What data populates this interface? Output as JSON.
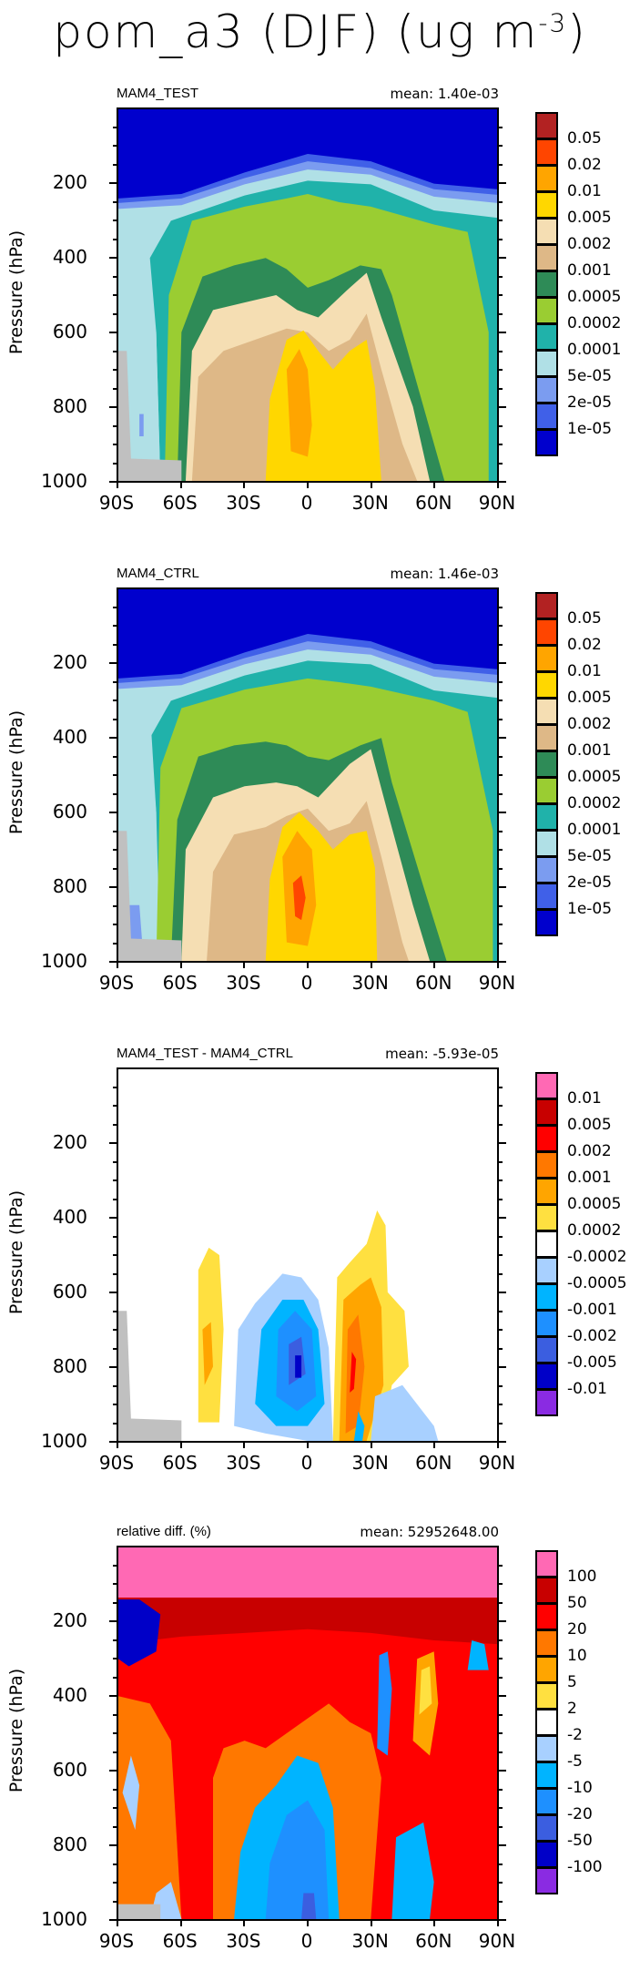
{
  "figure_title": {
    "main": "pom_a3 (DJF) (ug m",
    "sup": "-3",
    "close": ")"
  },
  "chart_data": [
    {
      "type": "heatmap",
      "title": "MAM4_TEST",
      "mean_label": "mean: 1.40e-03",
      "ylabel": "Pressure (hPa)",
      "yticks": [
        "200",
        "400",
        "600",
        "800",
        "1000"
      ],
      "xticks": [
        "90S",
        "60S",
        "30S",
        "0",
        "30N",
        "60N",
        "90N"
      ],
      "ylim": [
        0,
        1000
      ],
      "xlim": [
        -90,
        90
      ],
      "levels": [
        "0.05",
        "0.02",
        "0.01",
        "0.005",
        "0.002",
        "0.001",
        "0.0005",
        "0.0002",
        "0.0001",
        "5e-05",
        "2e-05",
        "1e-05"
      ],
      "colors": [
        "#b22222",
        "#ff4500",
        "#ffa500",
        "#ffd700",
        "#f5deb3",
        "#deb887",
        "#2e8b57",
        "#9acd32",
        "#20b2aa",
        "#b0e0e6",
        "#7b9cf0",
        "#4060e8",
        "#0000cd"
      ]
    },
    {
      "type": "heatmap",
      "title": "MAM4_CTRL",
      "mean_label": "mean: 1.46e-03",
      "ylabel": "Pressure (hPa)",
      "yticks": [
        "200",
        "400",
        "600",
        "800",
        "1000"
      ],
      "xticks": [
        "90S",
        "60S",
        "30S",
        "0",
        "30N",
        "60N",
        "90N"
      ],
      "ylim": [
        0,
        1000
      ],
      "xlim": [
        -90,
        90
      ],
      "levels": [
        "0.05",
        "0.02",
        "0.01",
        "0.005",
        "0.002",
        "0.001",
        "0.0005",
        "0.0002",
        "0.0001",
        "5e-05",
        "2e-05",
        "1e-05"
      ],
      "colors": [
        "#b22222",
        "#ff4500",
        "#ffa500",
        "#ffd700",
        "#f5deb3",
        "#deb887",
        "#2e8b57",
        "#9acd32",
        "#20b2aa",
        "#b0e0e6",
        "#7b9cf0",
        "#4060e8",
        "#0000cd"
      ]
    },
    {
      "type": "heatmap",
      "title": "MAM4_TEST - MAM4_CTRL",
      "mean_label": "mean: -5.93e-05",
      "ylabel": "Pressure (hPa)",
      "yticks": [
        "200",
        "400",
        "600",
        "800",
        "1000"
      ],
      "xticks": [
        "90S",
        "60S",
        "30S",
        "0",
        "30N",
        "60N",
        "90N"
      ],
      "ylim": [
        0,
        1000
      ],
      "xlim": [
        -90,
        90
      ],
      "levels": [
        "0.01",
        "0.005",
        "0.002",
        "0.001",
        "0.0005",
        "0.0002",
        "-0.0002",
        "-0.0005",
        "-0.001",
        "-0.002",
        "-0.005",
        "-0.01"
      ],
      "colors": [
        "#ff69b4",
        "#c80000",
        "#ff0000",
        "#ff7800",
        "#ffa500",
        "#ffe040",
        "#ffffff",
        "#a8d0ff",
        "#00b4ff",
        "#1e90ff",
        "#3b5ee0",
        "#0000c8",
        "#8a2be2"
      ]
    },
    {
      "type": "heatmap",
      "title": "relative diff. (%)",
      "mean_label": "mean: 52952648.00",
      "ylabel": "Pressure (hPa)",
      "yticks": [
        "200",
        "400",
        "600",
        "800",
        "1000"
      ],
      "xticks": [
        "90S",
        "60S",
        "30S",
        "0",
        "30N",
        "60N",
        "90N"
      ],
      "ylim": [
        0,
        1000
      ],
      "xlim": [
        -90,
        90
      ],
      "levels": [
        "100",
        "50",
        "20",
        "10",
        "5",
        "2",
        "-2",
        "-5",
        "-10",
        "-20",
        "-50",
        "-100"
      ],
      "colors": [
        "#ff69b4",
        "#c80000",
        "#ff0000",
        "#ff7800",
        "#ffa500",
        "#ffe040",
        "#ffffff",
        "#a8d0ff",
        "#00b4ff",
        "#1e90ff",
        "#3b5ee0",
        "#0000c8",
        "#8a2be2"
      ]
    }
  ]
}
